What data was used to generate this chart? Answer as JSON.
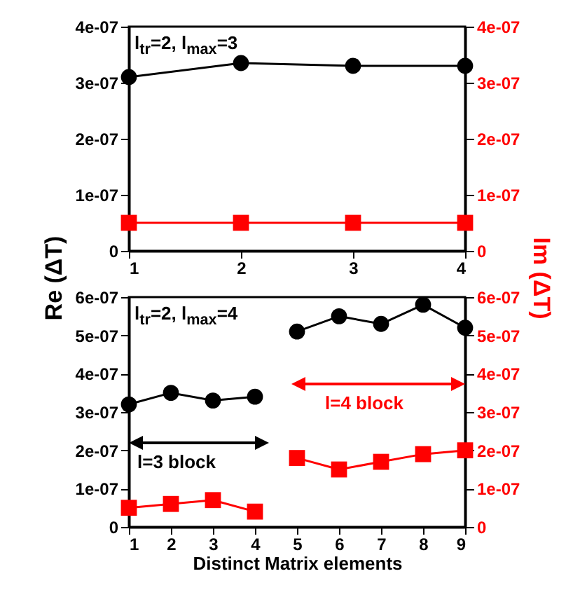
{
  "chart_data": [
    {
      "type": "line",
      "xlim": [
        1,
        4
      ],
      "xticks": [
        1,
        2,
        3,
        4
      ],
      "ylim": [
        0,
        4e-07
      ],
      "yticks": [
        0,
        {
          "value": 1e-07,
          "label": "1e-07"
        },
        {
          "value": 2e-07,
          "label": "2e-07"
        },
        {
          "value": 3e-07,
          "label": "3e-07"
        },
        {
          "value": 4e-07,
          "label": "4e-07"
        }
      ],
      "y2lim": [
        0,
        4e-07
      ],
      "y2ticks": [
        0,
        {
          "value": 1e-07,
          "label": "1e-07"
        },
        {
          "value": 2e-07,
          "label": "2e-07"
        },
        {
          "value": 3e-07,
          "label": "3e-07"
        },
        {
          "value": 4e-07,
          "label": "4e-07"
        }
      ],
      "grid": false,
      "legend": false,
      "annotations": [
        "l$_{tr}$=2, l$_{max}$=3"
      ],
      "series": [
        {
          "color": "#000000",
          "marker": "circle",
          "x": [
            1,
            2,
            3,
            4
          ],
          "values": [
            3.1e-07,
            3.35e-07,
            3.3e-07,
            3.3e-07
          ]
        },
        {
          "color": "#ff0000",
          "marker": "square",
          "axis": "y2",
          "x": [
            1,
            2,
            3,
            4
          ],
          "values": [
            5e-08,
            5e-08,
            5e-08,
            5e-08
          ]
        }
      ]
    },
    {
      "type": "line",
      "xlabel": "Distinct Matrix elements",
      "ylabel": "Re (ΔT)",
      "y2label": "Im (ΔT)",
      "xlim": [
        1,
        9
      ],
      "xticks": [
        1,
        2,
        3,
        4,
        5,
        6,
        7,
        8,
        9
      ],
      "ylim": [
        0,
        6e-07
      ],
      "yticks": [
        0,
        {
          "value": 1e-07,
          "label": "1e-07"
        },
        {
          "value": 2e-07,
          "label": "2e-07"
        },
        {
          "value": 3e-07,
          "label": "3e-07"
        },
        {
          "value": 4e-07,
          "label": "4e-07"
        },
        {
          "value": 5e-07,
          "label": "5e-07"
        },
        {
          "value": 6e-07,
          "label": "6e-07"
        }
      ],
      "y2lim": [
        0,
        6e-07
      ],
      "y2ticks": [
        0,
        {
          "value": 1e-07,
          "label": "1e-07"
        },
        {
          "value": 2e-07,
          "label": "2e-07"
        },
        {
          "value": 3e-07,
          "label": "3e-07"
        },
        {
          "value": 4e-07,
          "label": "4e-07"
        },
        {
          "value": 5e-07,
          "label": "5e-07"
        },
        {
          "value": 6e-07,
          "label": "6e-07"
        }
      ],
      "grid": false,
      "legend": false,
      "annotations": [
        "l$_{tr}$=2, l$_{max}$=4",
        "l=3 block",
        "l=4 block"
      ],
      "series": [
        {
          "color": "#000000",
          "marker": "circle",
          "x": [
            1,
            2,
            3,
            4
          ],
          "values": [
            3.2e-07,
            3.5e-07,
            3.3e-07,
            3.4e-07
          ]
        },
        {
          "color": "#000000",
          "marker": "circle",
          "x": [
            5,
            6,
            7,
            8,
            9
          ],
          "values": [
            5.1e-07,
            5.5e-07,
            5.3e-07,
            5.8e-07,
            5.2e-07
          ]
        },
        {
          "color": "#ff0000",
          "marker": "square",
          "axis": "y2",
          "x": [
            1,
            2,
            3,
            4
          ],
          "values": [
            5e-08,
            6e-08,
            7e-08,
            4e-08
          ]
        },
        {
          "color": "#ff0000",
          "marker": "square",
          "axis": "y2",
          "x": [
            5,
            6,
            7,
            8,
            9
          ],
          "values": [
            1.8e-07,
            1.5e-07,
            1.7e-07,
            1.9e-07,
            2e-07
          ]
        }
      ]
    }
  ]
}
